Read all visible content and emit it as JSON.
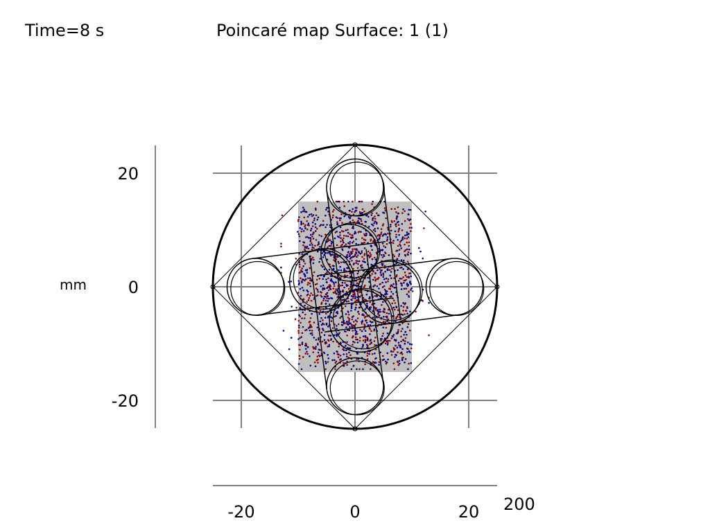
{
  "header": {
    "time_label": "Time=8 s",
    "title": "Poincaré map  Surface: 1 (1)"
  },
  "chart_data": {
    "type": "scatter",
    "title": "Poincaré map  Surface: 1 (1)",
    "time_label": "Time=8 s",
    "ylabel_unit": "mm",
    "x_axis_scale_label": "200",
    "xlim": [
      -25,
      25
    ],
    "ylim": [
      -25,
      25
    ],
    "x_ticks": [
      -20,
      0,
      20
    ],
    "y_ticks": [
      20,
      0,
      -20
    ],
    "grid": true,
    "colors": {
      "series_1": "#8b0000",
      "series_2": "#00008b",
      "particle_region": "#bfbfbf",
      "geometry": "#000000",
      "grid": "#808080"
    },
    "particle_region": {
      "x": [
        -10,
        10
      ],
      "y": [
        -15,
        15
      ]
    },
    "geometry": {
      "outer_circle_radius": 25,
      "diamond_vertex": 25,
      "edge_circles": [
        {
          "cx": 0,
          "cy": 17.5,
          "r": 5
        },
        {
          "cx": 0,
          "cy": -17.5,
          "r": 5
        },
        {
          "cx": 17.5,
          "cy": 0,
          "r": 5
        },
        {
          "cx": -17.5,
          "cy": 0,
          "r": 5
        }
      ],
      "inner_circles": [
        {
          "cx": -6,
          "cy": 1,
          "r": 5.5
        },
        {
          "cx": 6,
          "cy": -1,
          "r": 5.5
        },
        {
          "cx": -1,
          "cy": 6,
          "r": 5
        },
        {
          "cx": 1,
          "cy": -6,
          "r": 5.5
        }
      ]
    },
    "series": [
      {
        "color": "#8b0000",
        "point_count": 900
      },
      {
        "color": "#00008b",
        "point_count": 900
      }
    ]
  }
}
